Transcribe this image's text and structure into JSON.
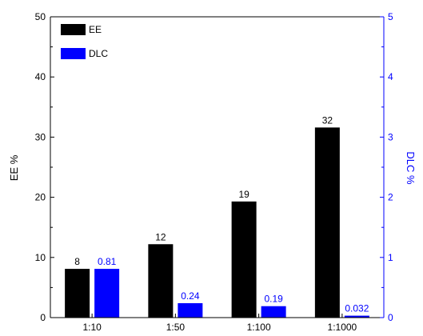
{
  "chart_data": {
    "type": "bar",
    "categories": [
      "1:10",
      "1:50",
      "1:100",
      "1:1000"
    ],
    "series": [
      {
        "name": "EE",
        "axis": "left",
        "color": "#000000",
        "values": [
          8,
          12,
          19,
          32
        ],
        "value_labels": [
          "8",
          "12",
          "19",
          "32"
        ],
        "bar_values": [
          8.1,
          12.2,
          19.3,
          31.6
        ]
      },
      {
        "name": "DLC",
        "axis": "right",
        "color": "#0000ff",
        "values": [
          0.81,
          0.24,
          0.19,
          0.032
        ],
        "value_labels": [
          "0.81",
          "0.24",
          "0.19",
          "0.032"
        ],
        "bar_values": [
          0.81,
          0.24,
          0.19,
          0.032
        ]
      }
    ],
    "ylabel": "EE %",
    "y2label": "DLC %",
    "ylim": [
      0,
      50
    ],
    "y2lim": [
      0,
      5
    ],
    "yticks": [
      "0",
      "10",
      "20",
      "30",
      "40",
      "50"
    ],
    "y2ticks": [
      "0",
      "1",
      "2",
      "3",
      "4",
      "5"
    ],
    "right_axis_color": "#0000ff",
    "grid": false,
    "legend_position": "top-left"
  }
}
